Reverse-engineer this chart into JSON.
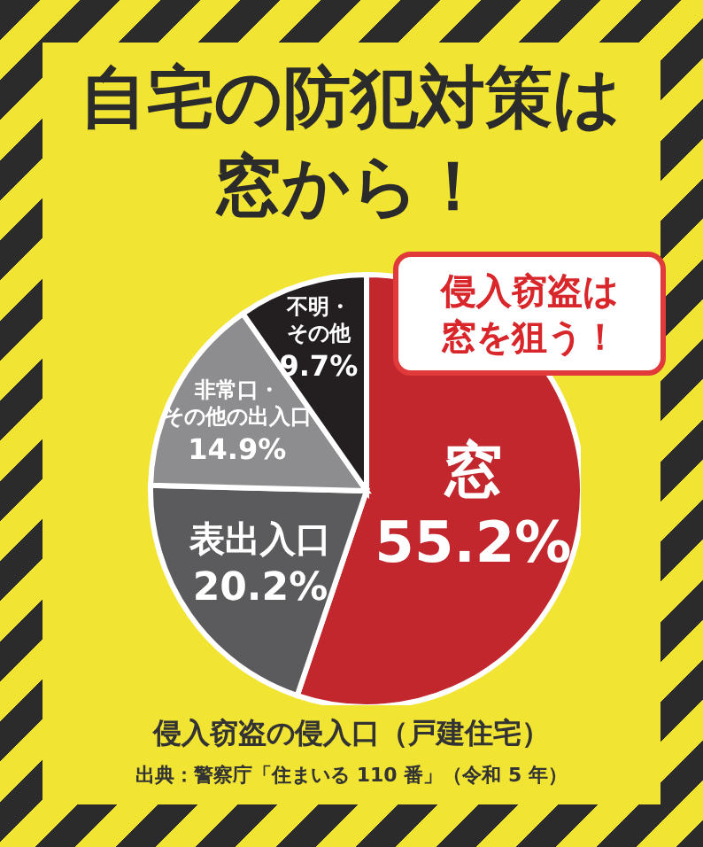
{
  "chart_data": {
    "type": "pie",
    "title": "自宅の防犯対策は窓から！",
    "subtitle": "侵入窃盗の侵入口（戸建住宅）",
    "annotations": [
      "侵入窃盗は窓を狙う！",
      "出典：警察庁「住まいる 110 番」（令和 5 年）"
    ],
    "categories": [
      "窓",
      "表出入口",
      "非常口・その他の出入口",
      "不明・その他"
    ],
    "values": [
      55.2,
      20.2,
      14.9,
      9.7
    ],
    "value_labels": [
      "55.2%",
      "20.2%",
      "14.9%",
      "9.7%"
    ],
    "colors": [
      "#c1272d",
      "#5b5b5d",
      "#8d8d8f",
      "#231f20"
    ]
  }
}
